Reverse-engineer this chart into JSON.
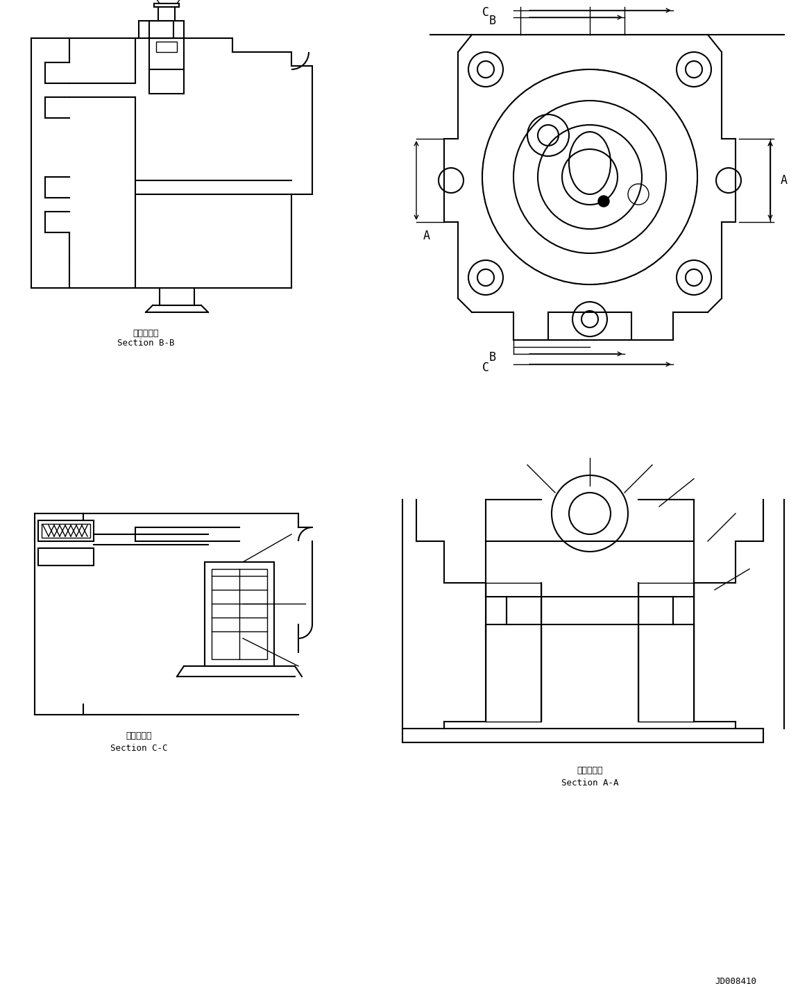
{
  "title": "",
  "background_color": "#ffffff",
  "line_color": "#000000",
  "text_color": "#000000",
  "labels": {
    "section_bb_jp": "断面Ｂ－Ｂ",
    "section_bb_en": "Section B-B",
    "section_cc_jp": "断面Ｃ－Ｃ",
    "section_cc_en": "Section C-C",
    "section_aa_jp": "断面Ａ－Ａ",
    "section_aa_en": "Section A-A",
    "drawing_number": "JD008410"
  },
  "font_size_label": 9,
  "font_size_drawing_number": 9
}
